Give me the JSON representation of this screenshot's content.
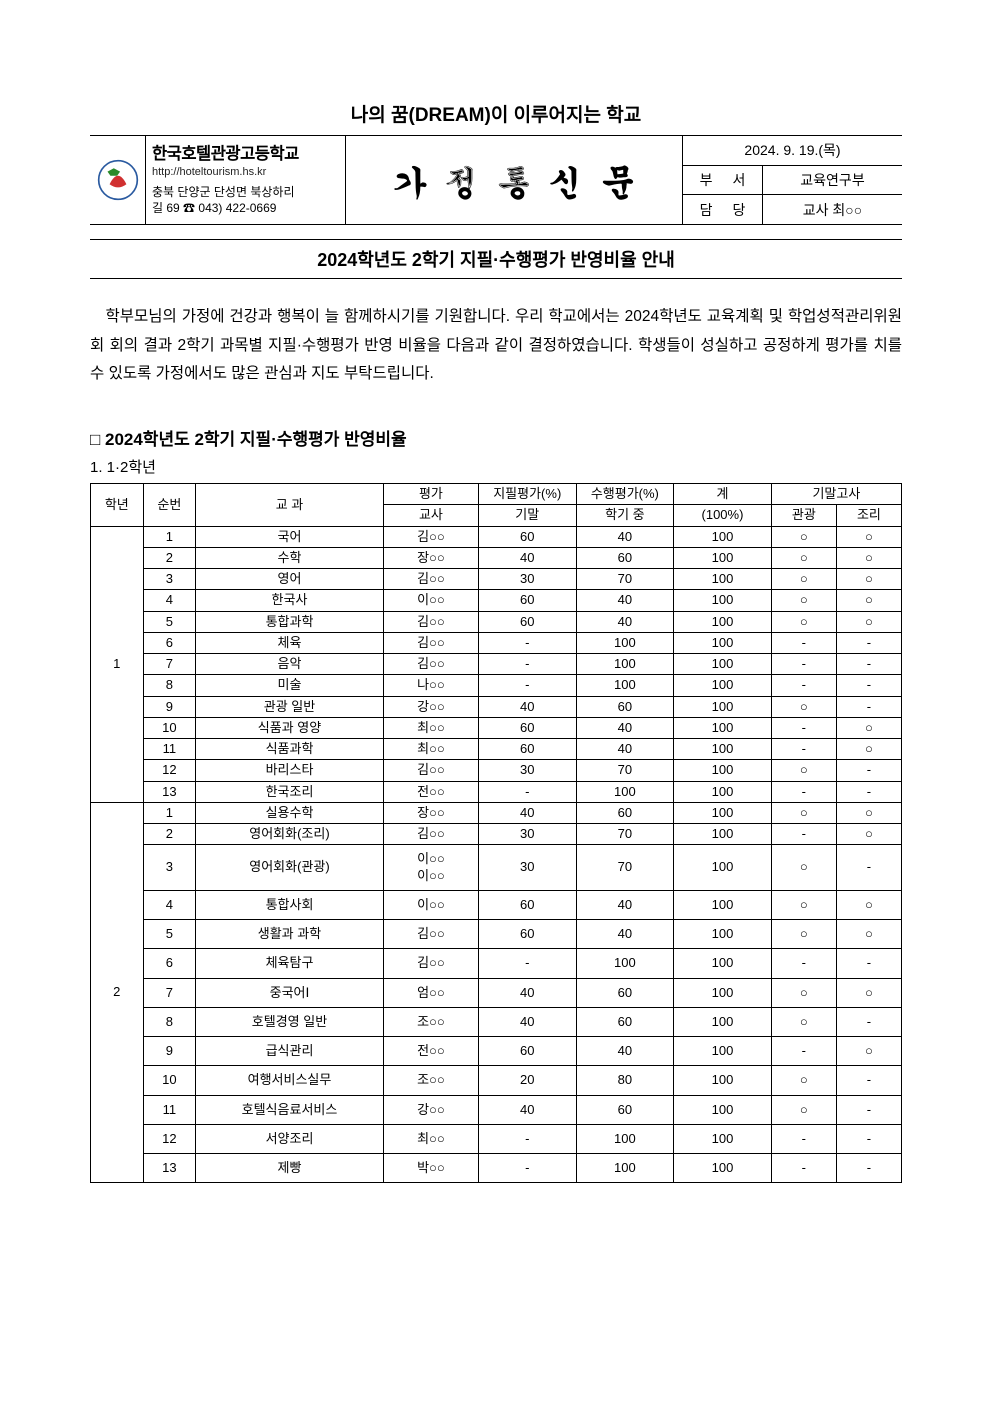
{
  "motto": "나의 꿈(DREAM)이 이루어지는 학교",
  "header": {
    "school_name": "한국호텔관광고등학교",
    "school_url": "http://hoteltourism.hs.kr",
    "school_addr_line1": "충북 단양군 단성면 북상하리",
    "school_addr_line2": "길 69 ☎ 043) 422-0669",
    "main_title": "가정통신문",
    "date": "2024. 9. 19.(목)",
    "dept_label": "부 서",
    "dept_value": "교육연구부",
    "charge_label": "담 당",
    "charge_value": "교사 최○○"
  },
  "announce": "2024학년도 2학기 지필·수행평가 반영비율 안내",
  "body": "학부모님의 가정에 건강과 행복이 늘 함께하시기를 기원합니다. 우리 학교에서는 2024학년도 교육계획 및 학업성적관리위원회 회의 결과 2학기 과목별 지필·수행평가 반영 비율을 다음과 같이 결정하였습니다. 학생들이 성실하고 공정하게 평가를 치를 수 있도록 가정에서도 많은 관심과 지도 부탁드립니다.",
  "section_heading": "□ 2024학년도 2학기 지필·수행평가 반영비율",
  "section_sub": "1. 1·2학년",
  "thead": {
    "grade": "학년",
    "num": "순번",
    "subject": "교 과",
    "eval": "평가",
    "teacher": "교사",
    "written": "지필평가(%)",
    "perf": "수행평가(%)",
    "total": "계",
    "final_exam": "기말고사",
    "final": "기말",
    "during": "학기 중",
    "hundred": "(100%)",
    "tourism": "관광",
    "cooking": "조리"
  },
  "grade1": {
    "label": "1",
    "rows": [
      {
        "n": "1",
        "subject": "국어",
        "teacher": "김○○",
        "final": "60",
        "perf": "40",
        "total": "100",
        "t": "○",
        "c": "○"
      },
      {
        "n": "2",
        "subject": "수학",
        "teacher": "장○○",
        "final": "40",
        "perf": "60",
        "total": "100",
        "t": "○",
        "c": "○"
      },
      {
        "n": "3",
        "subject": "영어",
        "teacher": "김○○",
        "final": "30",
        "perf": "70",
        "total": "100",
        "t": "○",
        "c": "○"
      },
      {
        "n": "4",
        "subject": "한국사",
        "teacher": "이○○",
        "final": "60",
        "perf": "40",
        "total": "100",
        "t": "○",
        "c": "○"
      },
      {
        "n": "5",
        "subject": "통합과학",
        "teacher": "김○○",
        "final": "60",
        "perf": "40",
        "total": "100",
        "t": "○",
        "c": "○"
      },
      {
        "n": "6",
        "subject": "체육",
        "teacher": "김○○",
        "final": "-",
        "perf": "100",
        "total": "100",
        "t": "-",
        "c": "-"
      },
      {
        "n": "7",
        "subject": "음악",
        "teacher": "김○○",
        "final": "-",
        "perf": "100",
        "total": "100",
        "t": "-",
        "c": "-"
      },
      {
        "n": "8",
        "subject": "미술",
        "teacher": "나○○",
        "final": "-",
        "perf": "100",
        "total": "100",
        "t": "-",
        "c": "-"
      },
      {
        "n": "9",
        "subject": "관광 일반",
        "teacher": "강○○",
        "final": "40",
        "perf": "60",
        "total": "100",
        "t": "○",
        "c": "-"
      },
      {
        "n": "10",
        "subject": "식품과 영양",
        "teacher": "최○○",
        "final": "60",
        "perf": "40",
        "total": "100",
        "t": "-",
        "c": "○"
      },
      {
        "n": "11",
        "subject": "식품과학",
        "teacher": "최○○",
        "final": "60",
        "perf": "40",
        "total": "100",
        "t": "-",
        "c": "○"
      },
      {
        "n": "12",
        "subject": "바리스타",
        "teacher": "김○○",
        "final": "30",
        "perf": "70",
        "total": "100",
        "t": "○",
        "c": "-"
      },
      {
        "n": "13",
        "subject": "한국조리",
        "teacher": "전○○",
        "final": "-",
        "perf": "100",
        "total": "100",
        "t": "-",
        "c": "-"
      }
    ]
  },
  "grade2": {
    "label": "2",
    "rows": [
      {
        "n": "1",
        "subject": "실용수학",
        "teacher": "장○○",
        "final": "40",
        "perf": "60",
        "total": "100",
        "t": "○",
        "c": "○"
      },
      {
        "n": "2",
        "subject": "영어회화(조리)",
        "teacher": "김○○",
        "final": "30",
        "perf": "70",
        "total": "100",
        "t": "-",
        "c": "○"
      },
      {
        "n": "3",
        "subject": "영어회화(관광)",
        "teacher": "이○○\n이○○",
        "final": "30",
        "perf": "70",
        "total": "100",
        "t": "○",
        "c": "-",
        "tall": true
      },
      {
        "n": "4",
        "subject": "통합사회",
        "teacher": "이○○",
        "final": "60",
        "perf": "40",
        "total": "100",
        "t": "○",
        "c": "○",
        "tall": true
      },
      {
        "n": "5",
        "subject": "생활과 과학",
        "teacher": "김○○",
        "final": "60",
        "perf": "40",
        "total": "100",
        "t": "○",
        "c": "○",
        "tall": true
      },
      {
        "n": "6",
        "subject": "체육탐구",
        "teacher": "김○○",
        "final": "-",
        "perf": "100",
        "total": "100",
        "t": "-",
        "c": "-",
        "tall": true
      },
      {
        "n": "7",
        "subject": "중국어Ⅰ",
        "teacher": "엄○○",
        "final": "40",
        "perf": "60",
        "total": "100",
        "t": "○",
        "c": "○",
        "tall": true
      },
      {
        "n": "8",
        "subject": "호텔경영 일반",
        "teacher": "조○○",
        "final": "40",
        "perf": "60",
        "total": "100",
        "t": "○",
        "c": "-",
        "tall": true
      },
      {
        "n": "9",
        "subject": "급식관리",
        "teacher": "전○○",
        "final": "60",
        "perf": "40",
        "total": "100",
        "t": "-",
        "c": "○",
        "tall": true
      },
      {
        "n": "10",
        "subject": "여행서비스실무",
        "teacher": "조○○",
        "final": "20",
        "perf": "80",
        "total": "100",
        "t": "○",
        "c": "-",
        "tall": true
      },
      {
        "n": "11",
        "subject": "호텔식음료서비스",
        "teacher": "강○○",
        "final": "40",
        "perf": "60",
        "total": "100",
        "t": "○",
        "c": "-",
        "tall": true
      },
      {
        "n": "12",
        "subject": "서양조리",
        "teacher": "최○○",
        "final": "-",
        "perf": "100",
        "total": "100",
        "t": "-",
        "c": "-",
        "tall": true
      },
      {
        "n": "13",
        "subject": "제빵",
        "teacher": "박○○",
        "final": "-",
        "perf": "100",
        "total": "100",
        "t": "-",
        "c": "-",
        "tall": true
      }
    ]
  }
}
